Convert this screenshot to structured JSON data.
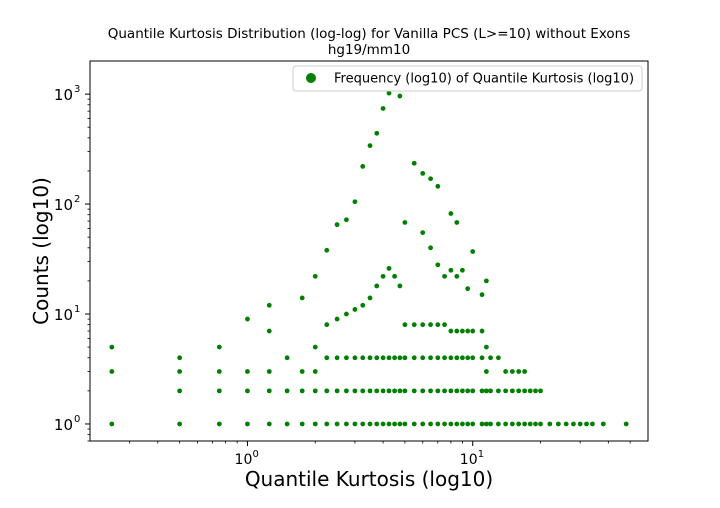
{
  "chart_data": {
    "type": "scatter",
    "title": "Quantile Kurtosis Distribution (log-log) for Vanilla PCS (L>=10) without Exons",
    "subtitle": "hg19/mm10",
    "xlabel": "Quantile Kurtosis (log10)",
    "ylabel": "Counts (log10)",
    "xscale": "log",
    "yscale": "log",
    "xlim": [
      0.2,
      60
    ],
    "ylim": [
      0.7,
      2000
    ],
    "x_ticks": [
      {
        "value": 1,
        "label": "10",
        "exp": "0"
      },
      {
        "value": 10,
        "label": "10",
        "exp": "1"
      }
    ],
    "y_ticks": [
      {
        "value": 1,
        "label": "10",
        "exp": "0"
      },
      {
        "value": 10,
        "label": "10",
        "exp": "1"
      },
      {
        "value": 100,
        "label": "10",
        "exp": "2"
      },
      {
        "value": 1000,
        "label": "10",
        "exp": "3"
      }
    ],
    "grid": false,
    "legend_position": "top-right",
    "series": [
      {
        "name": "Frequency (log10) of Quantile Kurtosis (log10)",
        "color": "#008000",
        "marker": "circle",
        "points": [
          [
            0.25,
            5
          ],
          [
            0.25,
            3
          ],
          [
            0.25,
            1
          ],
          [
            0.5,
            4
          ],
          [
            0.5,
            3
          ],
          [
            0.5,
            2
          ],
          [
            0.5,
            1
          ],
          [
            0.75,
            5
          ],
          [
            0.75,
            3
          ],
          [
            0.75,
            2
          ],
          [
            0.75,
            1
          ],
          [
            1.0,
            9
          ],
          [
            1.0,
            3
          ],
          [
            1.0,
            2
          ],
          [
            1.0,
            1
          ],
          [
            1.25,
            12
          ],
          [
            1.25,
            7
          ],
          [
            1.25,
            3
          ],
          [
            1.25,
            2
          ],
          [
            1.25,
            1
          ],
          [
            1.5,
            4
          ],
          [
            1.5,
            2
          ],
          [
            1.5,
            1
          ],
          [
            1.75,
            14
          ],
          [
            1.75,
            3
          ],
          [
            1.75,
            2
          ],
          [
            1.75,
            1
          ],
          [
            2.0,
            22
          ],
          [
            2.0,
            5
          ],
          [
            2.0,
            3
          ],
          [
            2.0,
            2
          ],
          [
            2.0,
            1
          ],
          [
            2.25,
            38
          ],
          [
            2.25,
            8
          ],
          [
            2.25,
            4
          ],
          [
            2.25,
            2
          ],
          [
            2.25,
            1
          ],
          [
            2.5,
            65
          ],
          [
            2.5,
            9
          ],
          [
            2.5,
            4
          ],
          [
            2.5,
            2
          ],
          [
            2.5,
            1
          ],
          [
            2.75,
            72
          ],
          [
            2.75,
            10
          ],
          [
            2.75,
            4
          ],
          [
            2.75,
            2
          ],
          [
            2.75,
            1
          ],
          [
            3.0,
            105
          ],
          [
            3.0,
            11
          ],
          [
            3.0,
            4
          ],
          [
            3.0,
            2
          ],
          [
            3.0,
            1
          ],
          [
            3.25,
            220
          ],
          [
            3.25,
            12
          ],
          [
            3.25,
            4
          ],
          [
            3.25,
            2
          ],
          [
            3.25,
            1
          ],
          [
            3.5,
            340
          ],
          [
            3.5,
            14
          ],
          [
            3.5,
            4
          ],
          [
            3.5,
            2
          ],
          [
            3.5,
            1
          ],
          [
            3.75,
            440
          ],
          [
            3.75,
            18
          ],
          [
            3.75,
            4
          ],
          [
            3.75,
            2
          ],
          [
            3.75,
            1
          ],
          [
            4.0,
            740
          ],
          [
            4.0,
            22
          ],
          [
            4.0,
            4
          ],
          [
            4.0,
            2
          ],
          [
            4.0,
            1
          ],
          [
            4.25,
            1020
          ],
          [
            4.25,
            26
          ],
          [
            4.25,
            4
          ],
          [
            4.25,
            2
          ],
          [
            4.25,
            1
          ],
          [
            4.5,
            22
          ],
          [
            4.5,
            4
          ],
          [
            4.5,
            2
          ],
          [
            4.5,
            1
          ],
          [
            4.75,
            960
          ],
          [
            4.75,
            18
          ],
          [
            4.75,
            4
          ],
          [
            4.75,
            2
          ],
          [
            4.75,
            1
          ],
          [
            5.0,
            68
          ],
          [
            5.0,
            8
          ],
          [
            5.0,
            4
          ],
          [
            5.0,
            2
          ],
          [
            5.0,
            1
          ],
          [
            5.5,
            235
          ],
          [
            5.5,
            8
          ],
          [
            5.5,
            4
          ],
          [
            5.5,
            2
          ],
          [
            5.5,
            1
          ],
          [
            6.0,
            190
          ],
          [
            6.0,
            55
          ],
          [
            6.0,
            8
          ],
          [
            6.0,
            4
          ],
          [
            6.0,
            2
          ],
          [
            6.0,
            1
          ],
          [
            6.5,
            170
          ],
          [
            6.5,
            40
          ],
          [
            6.5,
            8
          ],
          [
            6.5,
            4
          ],
          [
            6.5,
            2
          ],
          [
            6.5,
            1
          ],
          [
            7.0,
            145
          ],
          [
            7.0,
            28
          ],
          [
            7.0,
            8
          ],
          [
            7.0,
            4
          ],
          [
            7.0,
            2
          ],
          [
            7.0,
            1
          ],
          [
            7.5,
            22
          ],
          [
            7.5,
            8
          ],
          [
            7.5,
            4
          ],
          [
            7.5,
            2
          ],
          [
            7.5,
            1
          ],
          [
            8.0,
            82
          ],
          [
            8.0,
            25
          ],
          [
            8.0,
            7
          ],
          [
            8.0,
            4
          ],
          [
            8.0,
            2
          ],
          [
            8.0,
            1
          ],
          [
            8.5,
            68
          ],
          [
            8.5,
            22
          ],
          [
            8.5,
            7
          ],
          [
            8.5,
            4
          ],
          [
            8.5,
            2
          ],
          [
            8.5,
            1
          ],
          [
            9.0,
            25
          ],
          [
            9.0,
            7
          ],
          [
            9.0,
            4
          ],
          [
            9.0,
            2
          ],
          [
            9.0,
            1
          ],
          [
            9.5,
            17
          ],
          [
            9.5,
            7
          ],
          [
            9.5,
            4
          ],
          [
            9.5,
            2
          ],
          [
            9.5,
            1
          ],
          [
            10.0,
            37
          ],
          [
            10.0,
            7
          ],
          [
            10.0,
            4
          ],
          [
            10.0,
            2
          ],
          [
            10.0,
            1
          ],
          [
            11.0,
            15
          ],
          [
            11.0,
            7
          ],
          [
            11.0,
            4
          ],
          [
            11.0,
            2
          ],
          [
            11.0,
            1
          ],
          [
            11.5,
            20
          ],
          [
            11.5,
            5
          ],
          [
            11.5,
            3
          ],
          [
            11.5,
            2
          ],
          [
            11.5,
            1
          ],
          [
            12.0,
            4
          ],
          [
            12.0,
            2
          ],
          [
            12.0,
            1
          ],
          [
            13.0,
            4
          ],
          [
            13.0,
            2
          ],
          [
            13.0,
            1
          ],
          [
            14.0,
            3
          ],
          [
            14.0,
            2
          ],
          [
            14.0,
            1
          ],
          [
            15.0,
            3
          ],
          [
            15.0,
            2
          ],
          [
            15.0,
            1
          ],
          [
            16.0,
            3
          ],
          [
            16.0,
            2
          ],
          [
            16.0,
            1
          ],
          [
            17.0,
            3
          ],
          [
            17.0,
            2
          ],
          [
            17.0,
            1
          ],
          [
            18.0,
            2
          ],
          [
            18.0,
            1
          ],
          [
            19.0,
            2
          ],
          [
            19.0,
            1
          ],
          [
            20.0,
            2
          ],
          [
            20.0,
            1
          ],
          [
            22.0,
            1
          ],
          [
            24.0,
            1
          ],
          [
            26.0,
            1
          ],
          [
            28.0,
            1
          ],
          [
            30.0,
            1
          ],
          [
            32.0,
            1
          ],
          [
            34.0,
            1
          ],
          [
            38.0,
            1
          ],
          [
            48.0,
            1
          ]
        ]
      }
    ]
  }
}
